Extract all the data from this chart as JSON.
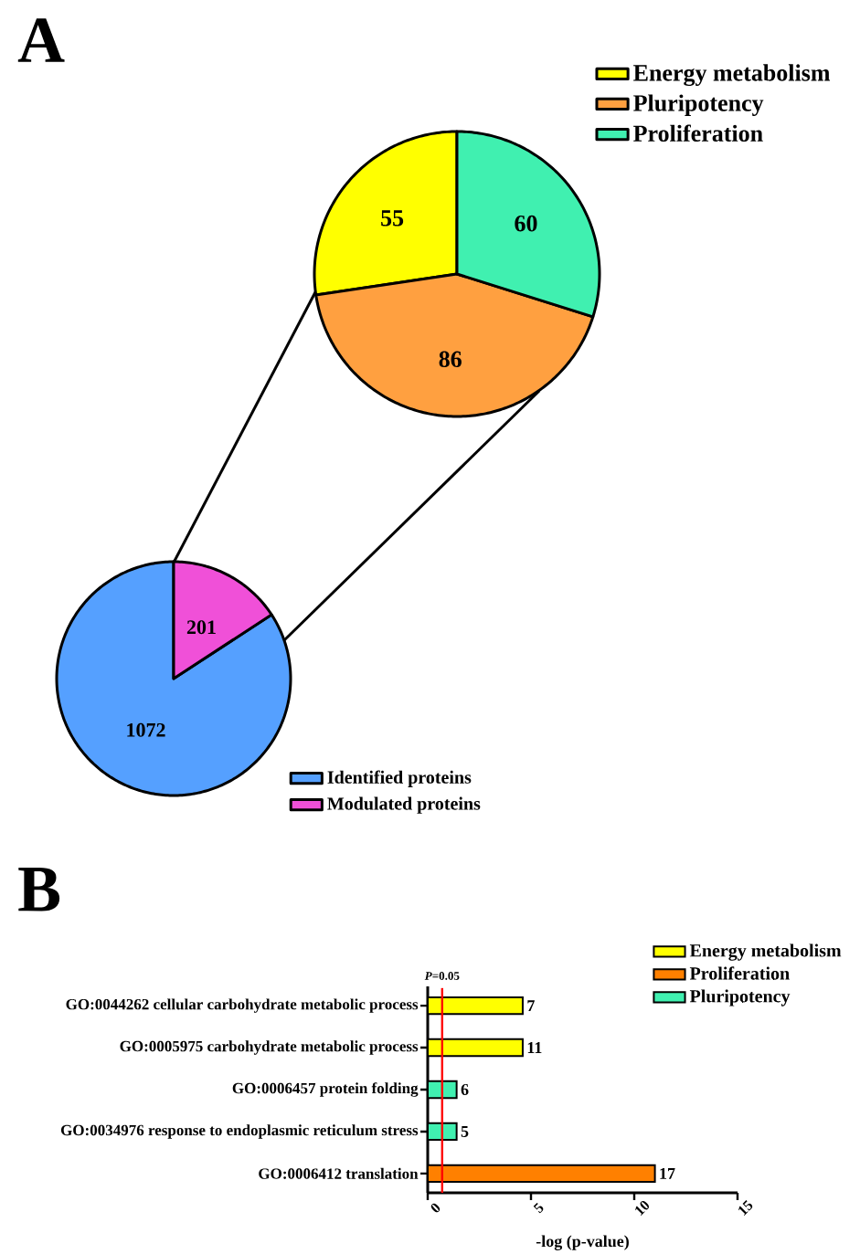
{
  "chart_data": [
    {
      "type": "pie",
      "title": "A",
      "categories": [
        "Energy metabolism",
        "Pluripotency",
        "Proliferation"
      ],
      "values": [
        55,
        86,
        60
      ],
      "colors": [
        "#ffff00",
        "#ffa040",
        "#40f0b0"
      ],
      "data_labels": true,
      "legend": "top right"
    },
    {
      "type": "pie",
      "categories": [
        "Identified proteins",
        "Modulated proteins"
      ],
      "values": [
        1072,
        201
      ],
      "colors": [
        "#55a0ff",
        "#f050d8"
      ],
      "data_labels": true,
      "legend": "bottom right"
    },
    {
      "type": "bar",
      "title": "B",
      "orientation": "horizontal",
      "xlabel": "-log (p-value)",
      "categories": [
        "GO:0044262 cellular carbohydrate metabolic process",
        "GO:0005975 carbohydrate metabolic process",
        "GO:0006457 protein folding",
        "GO:0034976 response to endoplasmic reticulum stress",
        "GO:0006412 translation"
      ],
      "series": [
        {
          "name": "Energy metabolism",
          "color": "#ffff00",
          "values": [
            4.6,
            4.6,
            null,
            null,
            null
          ]
        },
        {
          "name": "Proliferation",
          "color": "#ff8000",
          "values": [
            null,
            null,
            null,
            null,
            11.0
          ]
        },
        {
          "name": "Pluripotency",
          "color": "#40f0b0",
          "values": [
            null,
            null,
            1.4,
            1.4,
            null
          ]
        }
      ],
      "xlim": [
        0,
        15
      ],
      "xticks": [
        0,
        5,
        10,
        15
      ],
      "ref_lines": [
        {
          "axis": "x",
          "value": 0.7,
          "color": "#ff0000"
        }
      ],
      "annotations": [
        "*P*=0.05",
        {
          "text": "7",
          "x": 4.6,
          "y": "GO:0044262 cellular carbohydrate metabolic process"
        },
        {
          "text": "11",
          "x": 4.6,
          "y": "GO:0005975 carbohydrate metabolic process"
        },
        {
          "text": "6",
          "x": 1.4,
          "y": "GO:0006457 protein folding"
        },
        {
          "text": "5",
          "x": 1.4,
          "y": "GO:0034976 response to endoplasmic reticulum stress"
        },
        {
          "text": "17",
          "x": 11.0,
          "y": "GO:0006412 translation"
        }
      ],
      "legend": "top right"
    }
  ]
}
